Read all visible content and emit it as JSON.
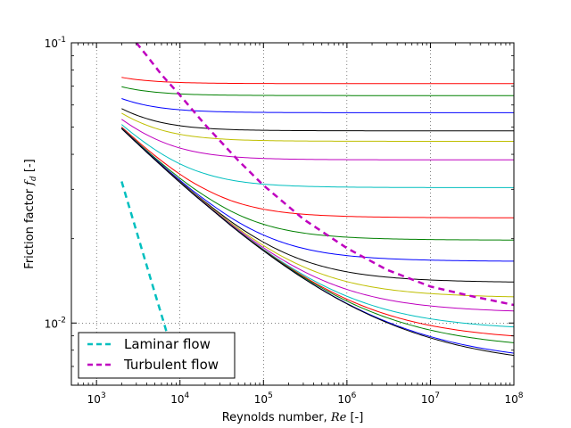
{
  "chart_data": {
    "type": "line",
    "title": "",
    "xlabel": "Reynolds number, ",
    "xlabel_math": "Re",
    "xlabel_unit": " [-]",
    "ylabel": "Friction factor ",
    "ylabel_math": "f",
    "ylabel_sub": "d",
    "ylabel_unit": " [-]",
    "x_scale": "log",
    "y_scale": "log",
    "xlim": [
      500,
      100000000
    ],
    "ylim": [
      0.006,
      0.1
    ],
    "grid": true,
    "grid_style": "dotted",
    "x_ticks": [
      {
        "base": "10",
        "exp": "3",
        "value": 1000
      },
      {
        "base": "10",
        "exp": "4",
        "value": 10000
      },
      {
        "base": "10",
        "exp": "5",
        "value": 100000
      },
      {
        "base": "10",
        "exp": "6",
        "value": 1000000
      },
      {
        "base": "10",
        "exp": "7",
        "value": 10000000
      },
      {
        "base": "10",
        "exp": "8",
        "value": 100000000
      }
    ],
    "y_ticks": [
      {
        "base": "10",
        "exp": "-2",
        "value": 0.01
      },
      {
        "base": "10",
        "exp": "-1",
        "value": 0.1
      }
    ],
    "legend": {
      "placement": "lower-left",
      "entries": [
        {
          "label": "Laminar flow",
          "color": "#00bfbf",
          "style": "dashed"
        },
        {
          "label": "Turbulent flow",
          "color": "#bf00bf",
          "style": "dashed"
        }
      ]
    },
    "curves": {
      "re_start": 2000,
      "re_end": 100000000,
      "colors": [
        "#ff0000",
        "#008000",
        "#0000ff",
        "#000000",
        "#bfbf00",
        "#bf00bf",
        "#00bfbf"
      ],
      "plateaus": [
        0.0715,
        0.0648,
        0.0563,
        0.0485,
        0.0445,
        0.0382,
        0.0304,
        0.0237,
        0.0197,
        0.0165,
        0.0138,
        0.0121,
        0.0106,
        0.009,
        0.0081,
        0.0074,
        0.0062,
        0.0059
      ]
    },
    "laminar_series": {
      "name": "Laminar flow",
      "x": [
        2000,
        2500,
        3200,
        4000,
        5000,
        6300,
        8000
      ],
      "y": [
        0.032,
        0.0256,
        0.02,
        0.016,
        0.0128,
        0.0102,
        0.008
      ]
    },
    "turbulent_series": {
      "name": "Turbulent flow",
      "x": [
        3000,
        4000,
        6000,
        10000,
        20000,
        50000,
        100000,
        300000,
        1000000,
        3000000,
        10000000,
        30000000,
        100000000
      ],
      "y": [
        0.1,
        0.09,
        0.077,
        0.065,
        0.051,
        0.038,
        0.031,
        0.0235,
        0.0185,
        0.0155,
        0.0135,
        0.0125,
        0.0116
      ]
    }
  }
}
